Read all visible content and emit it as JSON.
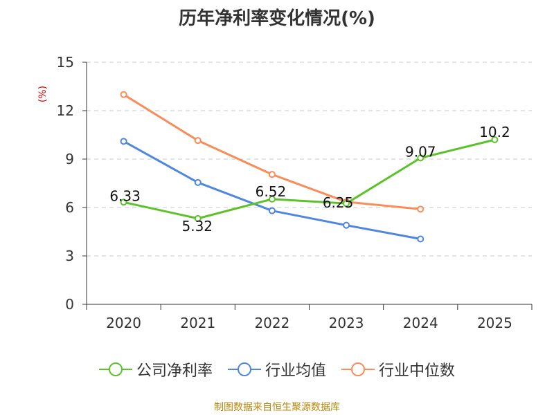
{
  "chart_data": {
    "type": "line",
    "title": "历年净利率变化情况(%)",
    "ylabel": "(%)",
    "xlabel": "",
    "categories": [
      "2020",
      "2021",
      "2022",
      "2023",
      "2024",
      "2025"
    ],
    "ylim": [
      0,
      15
    ],
    "yticks": [
      0,
      3,
      6,
      9,
      12,
      15
    ],
    "grid": true,
    "legend_position": "bottom",
    "series": [
      {
        "name": "公司净利率",
        "color": "#5cc22a",
        "values": [
          6.33,
          5.32,
          6.52,
          6.25,
          9.07,
          10.2
        ],
        "labels": [
          "6.33",
          "5.32",
          "6.52",
          "6.25",
          "9.07",
          "10.2"
        ],
        "show_labels": true
      },
      {
        "name": "行业均值",
        "color": "#4f86e0",
        "values": [
          10.1,
          7.55,
          5.8,
          4.9,
          4.05,
          null
        ],
        "show_labels": false
      },
      {
        "name": "行业中位数",
        "color": "#fa8c5a",
        "values": [
          13.0,
          10.15,
          8.05,
          6.35,
          5.9,
          null
        ],
        "show_labels": false
      }
    ]
  },
  "source": "制图数据来自恒生聚源数据库"
}
